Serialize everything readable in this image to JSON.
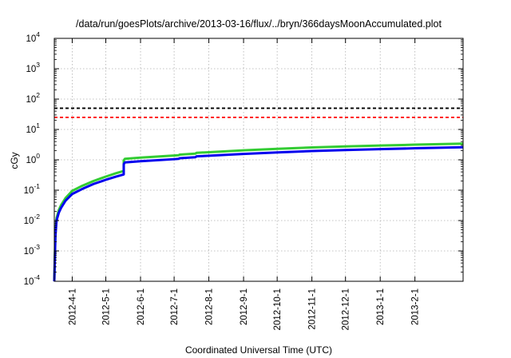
{
  "chart_data": {
    "type": "line",
    "title": "/data/run/goesPlots/archive/2013-03-16/flux/../bryn/366daysMoonAccumulated.plot",
    "xlabel": "Coordinated Universal Time (UTC)",
    "ylabel": "cGy",
    "scale": {
      "y": "log",
      "x": "date"
    },
    "ylim": [
      0.0001,
      10000
    ],
    "xlim": [
      "2012-03-16",
      "2013-03-16"
    ],
    "grid": true,
    "y_ticks": [
      {
        "base": "10",
        "exp": "-4",
        "value": 0.0001
      },
      {
        "base": "10",
        "exp": "-3",
        "value": 0.001
      },
      {
        "base": "10",
        "exp": "-2",
        "value": 0.01
      },
      {
        "base": "10",
        "exp": "-1",
        "value": 0.1
      },
      {
        "base": "10",
        "exp": "0",
        "value": 1
      },
      {
        "base": "10",
        "exp": "1",
        "value": 10
      },
      {
        "base": "10",
        "exp": "2",
        "value": 100
      },
      {
        "base": "10",
        "exp": "3",
        "value": 1000
      },
      {
        "base": "10",
        "exp": "4",
        "value": 10000
      }
    ],
    "x_ticks": [
      {
        "label": "2012-4-1",
        "date": "2012-04-01"
      },
      {
        "label": "2012-5-1",
        "date": "2012-05-01"
      },
      {
        "label": "2012-6-1",
        "date": "2012-06-01"
      },
      {
        "label": "2012-7-1",
        "date": "2012-07-01"
      },
      {
        "label": "2012-8-1",
        "date": "2012-08-01"
      },
      {
        "label": "2012-9-1",
        "date": "2012-09-01"
      },
      {
        "label": "2012-10-1",
        "date": "2012-10-01"
      },
      {
        "label": "2012-11-1",
        "date": "2012-11-01"
      },
      {
        "label": "2012-12-1",
        "date": "2012-12-01"
      },
      {
        "label": "2013-1-1",
        "date": "2013-01-01"
      },
      {
        "label": "2013-2-1",
        "date": "2013-02-01"
      }
    ],
    "thresholds": [
      {
        "value": 50,
        "color": "#000000",
        "style": "dashed"
      },
      {
        "value": 25,
        "color": "#ff0000",
        "style": "dashed"
      }
    ],
    "series": [
      {
        "color": "#33cc33",
        "points": [
          [
            "2012-03-16",
            0.0001
          ],
          [
            "2012-03-17",
            0.004
          ],
          [
            "2012-03-18",
            0.012
          ],
          [
            "2012-03-20",
            0.022
          ],
          [
            "2012-03-22",
            0.032
          ],
          [
            "2012-03-26",
            0.055
          ],
          [
            "2012-04-01",
            0.095
          ],
          [
            "2012-04-10",
            0.14
          ],
          [
            "2012-04-20",
            0.2
          ],
          [
            "2012-05-01",
            0.28
          ],
          [
            "2012-05-10",
            0.36
          ],
          [
            "2012-05-17",
            0.43
          ],
          [
            "2012-05-17",
            0.95
          ],
          [
            "2012-05-18",
            1.08
          ],
          [
            "2012-06-01",
            1.18
          ],
          [
            "2012-07-01",
            1.38
          ],
          [
            "2012-07-05",
            1.42
          ],
          [
            "2012-07-06",
            1.48
          ],
          [
            "2012-07-20",
            1.6
          ],
          [
            "2012-07-21",
            1.7
          ],
          [
            "2012-08-01",
            1.78
          ],
          [
            "2012-09-01",
            2.05
          ],
          [
            "2012-10-01",
            2.3
          ],
          [
            "2012-11-01",
            2.55
          ],
          [
            "2012-12-01",
            2.75
          ],
          [
            "2013-01-01",
            2.95
          ],
          [
            "2013-02-01",
            3.15
          ],
          [
            "2013-03-16",
            3.4
          ]
        ]
      },
      {
        "color": "#0000ee",
        "points": [
          [
            "2012-03-16",
            0.0001
          ],
          [
            "2012-03-17",
            0.003
          ],
          [
            "2012-03-18",
            0.01
          ],
          [
            "2012-03-20",
            0.018
          ],
          [
            "2012-03-22",
            0.026
          ],
          [
            "2012-03-26",
            0.045
          ],
          [
            "2012-04-01",
            0.075
          ],
          [
            "2012-04-10",
            0.11
          ],
          [
            "2012-04-20",
            0.16
          ],
          [
            "2012-05-01",
            0.22
          ],
          [
            "2012-05-10",
            0.28
          ],
          [
            "2012-05-17",
            0.33
          ],
          [
            "2012-05-17",
            0.72
          ],
          [
            "2012-05-18",
            0.82
          ],
          [
            "2012-06-01",
            0.9
          ],
          [
            "2012-07-01",
            1.05
          ],
          [
            "2012-07-05",
            1.08
          ],
          [
            "2012-07-06",
            1.13
          ],
          [
            "2012-07-20",
            1.22
          ],
          [
            "2012-07-21",
            1.3
          ],
          [
            "2012-08-01",
            1.36
          ],
          [
            "2012-09-01",
            1.56
          ],
          [
            "2012-10-01",
            1.75
          ],
          [
            "2012-11-01",
            1.95
          ],
          [
            "2012-12-01",
            2.1
          ],
          [
            "2013-01-01",
            2.25
          ],
          [
            "2013-02-01",
            2.4
          ],
          [
            "2013-03-16",
            2.6
          ]
        ]
      }
    ]
  }
}
